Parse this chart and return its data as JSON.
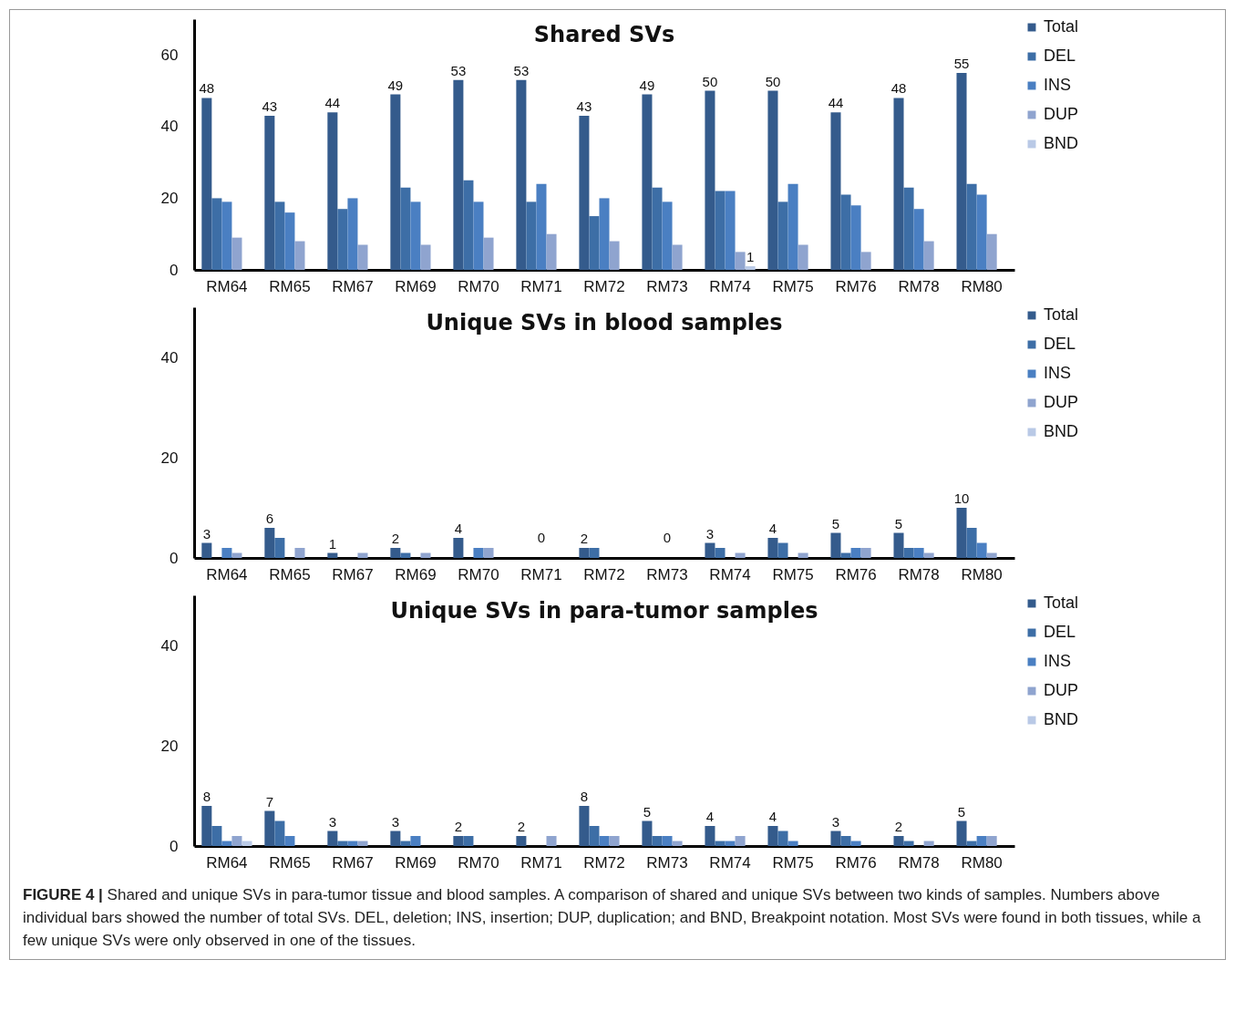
{
  "chart_data": [
    {
      "type": "bar",
      "title": "Shared SVs",
      "categories": [
        "RM64",
        "RM65",
        "RM67",
        "RM69",
        "RM70",
        "RM71",
        "RM72",
        "RM73",
        "RM74",
        "RM75",
        "RM76",
        "RM78",
        "RM80"
      ],
      "ylim": [
        0,
        70
      ],
      "yticks": [
        0,
        20,
        40,
        60
      ],
      "legend": "right",
      "series": [
        {
          "name": "Total",
          "color": "#345b8c",
          "values": [
            48,
            43,
            44,
            49,
            53,
            53,
            43,
            49,
            50,
            50,
            44,
            48,
            55
          ],
          "value_labels": [
            "48",
            "43",
            "44",
            "49",
            "53",
            "53",
            "43",
            "49",
            "50",
            "50",
            "44",
            "48",
            "55"
          ]
        },
        {
          "name": "DEL",
          "color": "#3d6ea6",
          "values": [
            20,
            19,
            17,
            23,
            25,
            19,
            15,
            23,
            22,
            19,
            21,
            23,
            24
          ]
        },
        {
          "name": "INS",
          "color": "#4a7fc2",
          "values": [
            19,
            16,
            20,
            19,
            19,
            24,
            20,
            19,
            22,
            24,
            18,
            17,
            21
          ]
        },
        {
          "name": "DUP",
          "color": "#8fa4cf",
          "values": [
            9,
            8,
            7,
            7,
            9,
            10,
            8,
            7,
            5,
            7,
            5,
            8,
            10
          ]
        },
        {
          "name": "BND",
          "color": "#b9c9e6",
          "values": [
            0,
            0,
            0,
            0,
            0,
            0,
            0,
            0,
            1,
            0,
            0,
            0,
            0
          ],
          "value_labels": [
            null,
            null,
            null,
            null,
            null,
            null,
            null,
            null,
            "1",
            null,
            null,
            null,
            null
          ]
        }
      ]
    },
    {
      "type": "bar",
      "title": "Unique SVs in blood samples",
      "categories": [
        "RM64",
        "RM65",
        "RM67",
        "RM69",
        "RM70",
        "RM71",
        "RM72",
        "RM73",
        "RM74",
        "RM75",
        "RM76",
        "RM78",
        "RM80"
      ],
      "ylim": [
        0,
        50
      ],
      "yticks": [
        0,
        20,
        40
      ],
      "legend": "right",
      "series": [
        {
          "name": "Total",
          "color": "#345b8c",
          "values": [
            3,
            6,
            1,
            2,
            4,
            0,
            2,
            0,
            3,
            4,
            5,
            5,
            10
          ],
          "value_labels": [
            "3",
            "6",
            "1",
            "2",
            "4",
            null,
            "2",
            null,
            "3",
            "4",
            "5",
            "5",
            "10"
          ]
        },
        {
          "name": "DEL",
          "color": "#3d6ea6",
          "values": [
            0,
            4,
            0,
            1,
            0,
            0,
            2,
            0,
            2,
            3,
            1,
            2,
            6
          ]
        },
        {
          "name": "INS",
          "color": "#4a7fc2",
          "values": [
            2,
            0,
            0,
            0,
            2,
            0,
            0,
            0,
            0,
            0,
            2,
            2,
            3
          ]
        },
        {
          "name": "DUP",
          "color": "#8fa4cf",
          "values": [
            1,
            2,
            1,
            1,
            2,
            0,
            0,
            0,
            1,
            1,
            2,
            1,
            1
          ]
        },
        {
          "name": "BND",
          "color": "#b9c9e6",
          "values": [
            0,
            0,
            0,
            0,
            0,
            0,
            0,
            0,
            0,
            0,
            0,
            0,
            0
          ]
        }
      ],
      "annotations": [
        {
          "text": "0",
          "x": "RM71",
          "y": 0
        },
        {
          "text": "0",
          "x": "RM73",
          "y": 0
        }
      ]
    },
    {
      "type": "bar",
      "title": "Unique SVs in para-tumor samples",
      "categories": [
        "RM64",
        "RM65",
        "RM67",
        "RM69",
        "RM70",
        "RM71",
        "RM72",
        "RM73",
        "RM74",
        "RM75",
        "RM76",
        "RM78",
        "RM80"
      ],
      "ylim": [
        0,
        50
      ],
      "yticks": [
        0,
        20,
        40
      ],
      "legend": "right",
      "series": [
        {
          "name": "Total",
          "color": "#345b8c",
          "values": [
            8,
            7,
            3,
            3,
            2,
            2,
            8,
            5,
            4,
            4,
            3,
            2,
            5
          ],
          "value_labels": [
            "8",
            "7",
            "3",
            "3",
            "2",
            "2",
            "8",
            "5",
            "4",
            "4",
            "3",
            "2",
            "5"
          ]
        },
        {
          "name": "DEL",
          "color": "#3d6ea6",
          "values": [
            4,
            5,
            1,
            1,
            2,
            0,
            4,
            2,
            1,
            3,
            2,
            1,
            1
          ]
        },
        {
          "name": "INS",
          "color": "#4a7fc2",
          "values": [
            1,
            2,
            1,
            2,
            0,
            0,
            2,
            2,
            1,
            1,
            1,
            0,
            2
          ]
        },
        {
          "name": "DUP",
          "color": "#8fa4cf",
          "values": [
            2,
            0,
            1,
            0,
            0,
            2,
            2,
            1,
            2,
            0,
            0,
            1,
            2
          ]
        },
        {
          "name": "BND",
          "color": "#b9c9e6",
          "values": [
            1,
            0,
            0,
            0,
            0,
            0,
            0,
            0,
            0,
            0,
            0,
            0,
            0
          ]
        }
      ],
      "annotations": [
        "FIGURE 4 | Shared and unique SVs in para-tumor tissue and blood samples. A comparison of shared and unique SVs between two kinds of samples. Numbers above individual bars showed the number of total SVs. DEL, deletion; INS, insertion; DUP, duplication; and BND, Breakpoint notation. Most SVs were found in both tissues, while a few unique SVs were only observed in one of the tissues."
      ]
    }
  ]
}
